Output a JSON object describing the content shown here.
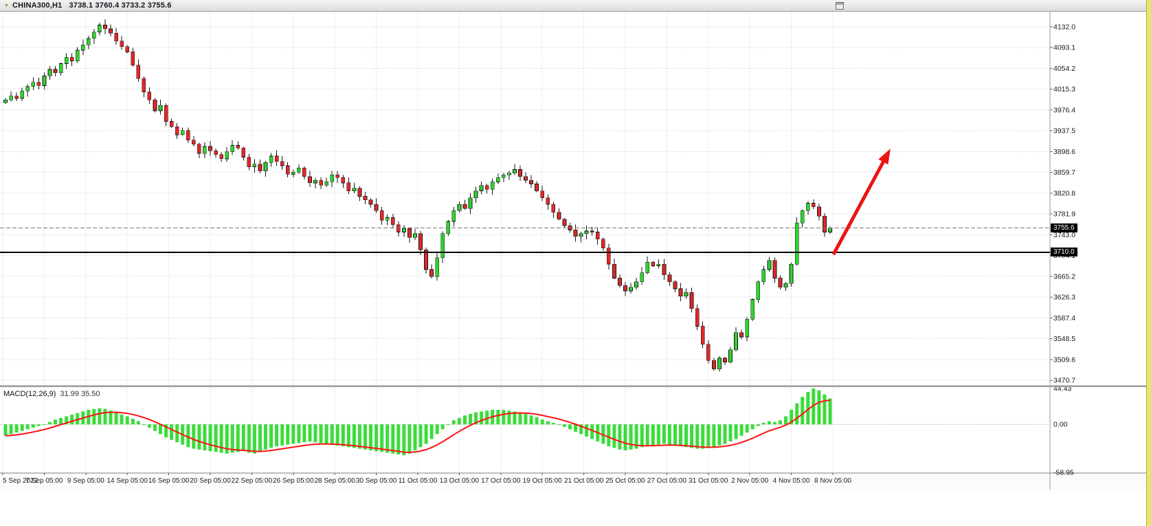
{
  "window": {
    "titlebar": {
      "symbol": "CHINA300,H1",
      "ohlc_text": "3738.1 3760.4 3733.2 3755.6"
    }
  },
  "chart_data": {
    "type": "candlestick",
    "title": "CHINA300 H1",
    "header_open": 3738.1,
    "header_high": 3760.4,
    "header_low": 3733.2,
    "header_close": 3755.6,
    "price_range_visible": [
      3462,
      4160
    ],
    "price_axis_ticks": [
      4132.0,
      4093.1,
      4054.2,
      4015.3,
      3976.4,
      3937.5,
      3898.6,
      3859.7,
      3820.8,
      3781.9,
      3743.0,
      3704.1,
      3665.2,
      3626.3,
      3587.4,
      3548.5,
      3509.6,
      3470.7
    ],
    "time_labels": [
      "5 Sep 2022",
      "7 Sep 05:00",
      "9 Sep 05:00",
      "14 Sep 05:00",
      "16 Sep 05:00",
      "20 Sep 05:00",
      "22 Sep 05:00",
      "26 Sep 05:00",
      "28 Sep 05:00",
      "30 Sep 05:00",
      "11 Oct 05:00",
      "13 Oct 05:00",
      "17 Oct 05:00",
      "19 Oct 05:00",
      "21 Oct 05:00",
      "25 Oct 05:00",
      "27 Oct 05:00",
      "31 Oct 05:00",
      "2 Nov 05:00",
      "4 Nov 05:00",
      "8 Nov 05:00"
    ],
    "first_open": 3990,
    "closes": [
      3995,
      4002,
      3998,
      4012,
      4020,
      4028,
      4022,
      4040,
      4052,
      4046,
      4063,
      4075,
      4068,
      4088,
      4098,
      4110,
      4122,
      4135,
      4128,
      4120,
      4105,
      4095,
      4085,
      4060,
      4035,
      4010,
      3995,
      3975,
      3985,
      3955,
      3945,
      3930,
      3938,
      3920,
      3912,
      3895,
      3908,
      3900,
      3893,
      3885,
      3898,
      3910,
      3905,
      3888,
      3870,
      3875,
      3862,
      3878,
      3890,
      3880,
      3872,
      3856,
      3860,
      3868,
      3852,
      3840,
      3845,
      3836,
      3842,
      3855,
      3850,
      3840,
      3825,
      3830,
      3815,
      3808,
      3800,
      3788,
      3770,
      3775,
      3762,
      3748,
      3755,
      3738,
      3745,
      3715,
      3678,
      3665,
      3700,
      3745,
      3768,
      3788,
      3800,
      3792,
      3812,
      3825,
      3835,
      3828,
      3842,
      3850,
      3855,
      3858,
      3865,
      3852,
      3845,
      3838,
      3825,
      3812,
      3800,
      3785,
      3772,
      3760,
      3752,
      3740,
      3745,
      3750,
      3748,
      3735,
      3718,
      3688,
      3662,
      3648,
      3638,
      3645,
      3655,
      3672,
      3692,
      3685,
      3688,
      3668,
      3655,
      3642,
      3628,
      3635,
      3605,
      3572,
      3538,
      3508,
      3492,
      3512,
      3505,
      3528,
      3560,
      3552,
      3585,
      3622,
      3655,
      3678,
      3695,
      3662,
      3645,
      3652,
      3688,
      3765,
      3788,
      3802,
      3795,
      3778,
      3748,
      3755.6
    ],
    "last_price": 3755.6,
    "last_price_label": "3755.6",
    "support_line": 3710.0,
    "support_line_label": "3710.0",
    "colors": {
      "up": "#2fd32f",
      "down": "#e02828",
      "wick": "#151515",
      "grid": "#cdcdcd",
      "support_line": "#000000",
      "bid_line": "#777777",
      "arrow": "#ee1212"
    },
    "annotation_arrow": {
      "from_bar": 149.6,
      "from_price": 3706,
      "to_bar": 159.9,
      "to_price": 3904
    },
    "macd": {
      "label": "MACD(12,26,9)",
      "values_text": "31.99 35.50",
      "axis_ticks": [
        44.43,
        0.0,
        -58.95
      ],
      "range_visible": [
        -60,
        46
      ],
      "signal_period": 9,
      "histogram": [
        -14,
        -12,
        -10,
        -8,
        -6,
        -4,
        -2,
        0,
        3,
        6,
        8,
        10,
        12,
        14,
        16,
        18,
        19,
        20,
        19,
        17,
        15,
        12,
        10,
        7,
        4,
        0,
        -4,
        -8,
        -12,
        -16,
        -19,
        -22,
        -25,
        -28,
        -30,
        -31,
        -32,
        -33,
        -34,
        -35,
        -36,
        -35,
        -34,
        -33,
        -35,
        -36,
        -34,
        -31,
        -29,
        -27,
        -26,
        -25,
        -24,
        -23,
        -22,
        -21,
        -22,
        -23,
        -24,
        -25,
        -26,
        -27,
        -28,
        -29,
        -30,
        -31,
        -32,
        -33,
        -34,
        -35,
        -36,
        -37,
        -38,
        -36,
        -32,
        -28,
        -24,
        -18,
        -12,
        -6,
        0,
        5,
        8,
        11,
        13,
        15,
        16,
        17,
        18,
        18,
        18,
        17,
        16,
        15,
        13,
        11,
        9,
        6,
        4,
        2,
        0,
        -3,
        -6,
        -9,
        -12,
        -15,
        -18,
        -21,
        -24,
        -27,
        -29,
        -31,
        -32,
        -31,
        -30,
        -28,
        -27,
        -26,
        -25,
        -24,
        -25,
        -26,
        -27,
        -28,
        -29,
        -30,
        -30,
        -29,
        -28,
        -26,
        -24,
        -21,
        -18,
        -14,
        -10,
        -6,
        -2,
        2,
        4,
        3,
        5,
        10,
        18,
        26,
        34,
        40,
        44.4,
        42,
        37,
        31.99
      ],
      "colors": {
        "histogram": "#3bdc3b",
        "signal": "#ff1212"
      }
    }
  }
}
